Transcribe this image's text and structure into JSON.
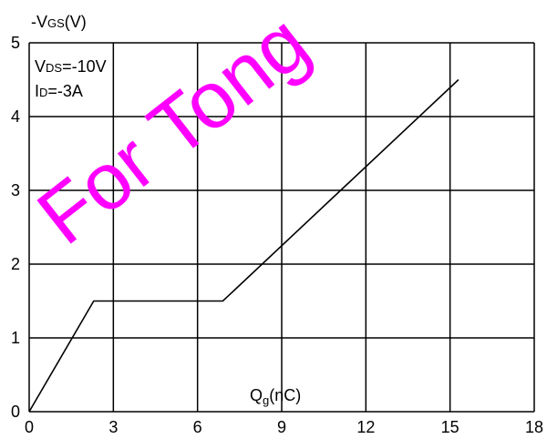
{
  "chart_data": {
    "type": "line",
    "title": "",
    "xlabel": {
      "main": "Q",
      "sub": "g",
      "unit": "(nC)"
    },
    "ylabel": {
      "prefix": "-V",
      "sub": "GS",
      "unit": "(V)"
    },
    "xlim": [
      0,
      18
    ],
    "ylim": [
      0,
      5
    ],
    "xticks": [
      0,
      3,
      6,
      9,
      12,
      15,
      18
    ],
    "yticks": [
      0,
      1,
      2,
      3,
      4,
      5
    ],
    "grid": true,
    "series": [
      {
        "x": [
          0,
          2.3,
          6.9,
          15.3
        ],
        "y": [
          0,
          1.5,
          1.5,
          4.5
        ]
      }
    ],
    "annotations": [
      {
        "main": "V",
        "sub": "DS",
        "rest": "=-10V"
      },
      {
        "main": "I",
        "sub": "D",
        "rest": "=-3A"
      }
    ],
    "watermark": "For Tong",
    "colors": {
      "line": "#000000",
      "grid": "#000000",
      "watermark": "#ff00ff"
    }
  }
}
